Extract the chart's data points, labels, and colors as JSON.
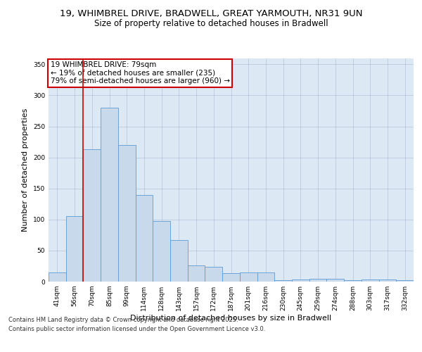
{
  "title_line1": "19, WHIMBREL DRIVE, BRADWELL, GREAT YARMOUTH, NR31 9UN",
  "title_line2": "Size of property relative to detached houses in Bradwell",
  "xlabel": "Distribution of detached houses by size in Bradwell",
  "ylabel": "Number of detached properties",
  "categories": [
    "41sqm",
    "56sqm",
    "70sqm",
    "85sqm",
    "99sqm",
    "114sqm",
    "128sqm",
    "143sqm",
    "157sqm",
    "172sqm",
    "187sqm",
    "201sqm",
    "216sqm",
    "230sqm",
    "245sqm",
    "259sqm",
    "274sqm",
    "288sqm",
    "303sqm",
    "317sqm",
    "332sqm"
  ],
  "values": [
    15,
    105,
    213,
    280,
    220,
    139,
    97,
    67,
    26,
    24,
    14,
    15,
    15,
    2,
    3,
    4,
    5,
    2,
    3,
    3,
    2
  ],
  "bar_color": "#c9d9ec",
  "bar_edge_color": "#5b9bd5",
  "background_color": "#dce9f5",
  "property_line_x": 1.5,
  "annotation_title": "19 WHIMBREL DRIVE: 79sqm",
  "annotation_line2": "← 19% of detached houses are smaller (235)",
  "annotation_line3": "79% of semi-detached houses are larger (960) →",
  "annotation_box_color": "#ffffff",
  "annotation_box_edge": "#cc0000",
  "vline_color": "#cc0000",
  "ylim": [
    0,
    360
  ],
  "yticks": [
    0,
    50,
    100,
    150,
    200,
    250,
    300,
    350
  ],
  "footnote_line1": "Contains HM Land Registry data © Crown copyright and database right 2025.",
  "footnote_line2": "Contains public sector information licensed under the Open Government Licence v3.0.",
  "title_fontsize": 9.5,
  "subtitle_fontsize": 8.5,
  "axis_label_fontsize": 8,
  "tick_fontsize": 6.5,
  "annotation_fontsize": 7.5,
  "footnote_fontsize": 6
}
